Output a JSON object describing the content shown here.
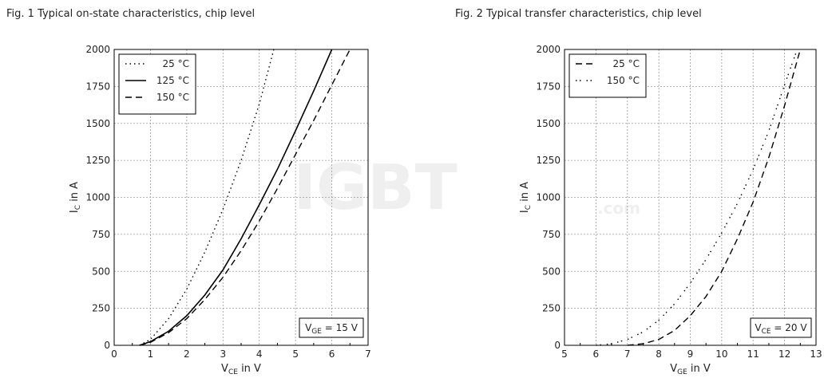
{
  "figures": {
    "fig1_title": "Fig. 1  Typical on-state characteristics, chip level",
    "fig2_title": "Fig. 2  Typical transfer characteristics, chip level"
  },
  "watermark": {
    "main": "IGBT",
    "sub": ".com"
  },
  "colors": {
    "line": "#000000",
    "grid": "#9a9a9a",
    "frame": "#000000"
  },
  "chart_data": [
    {
      "type": "line",
      "title": "Fig. 1  Typical on-state characteristics, chip level",
      "xlabel": {
        "main": "V",
        "sub": "CE",
        "rest": " in V"
      },
      "ylabel": {
        "main": "I",
        "sub": "C",
        "rest": " in A"
      },
      "xlim": [
        0,
        7
      ],
      "ylim": [
        0,
        2000
      ],
      "xticks": [
        0,
        1,
        2,
        3,
        4,
        5,
        6,
        7
      ],
      "yticks": [
        0,
        250,
        500,
        750,
        1000,
        1250,
        1500,
        1750,
        2000
      ],
      "grid": true,
      "legend_position": "top-left",
      "annotation": {
        "main": "V",
        "sub": "GE",
        "rest": " = 15 V"
      },
      "series": [
        {
          "name": "25 °C",
          "style": "dotted",
          "x": [
            0.7,
            1.0,
            1.5,
            2.0,
            2.5,
            3.0,
            3.5,
            4.0,
            4.4
          ],
          "y": [
            0,
            40,
            180,
            380,
            630,
            920,
            1250,
            1630,
            2000
          ]
        },
        {
          "name": "125 °C",
          "style": "solid",
          "x": [
            0.7,
            1.0,
            1.5,
            2.0,
            2.5,
            3.0,
            3.5,
            4.0,
            4.5,
            5.0,
            5.5,
            6.0
          ],
          "y": [
            0,
            25,
            95,
            200,
            340,
            510,
            720,
            950,
            1190,
            1450,
            1720,
            2000
          ]
        },
        {
          "name": "150 °C",
          "style": "dashed",
          "x": [
            0.7,
            1.0,
            1.5,
            2.0,
            2.5,
            3.0,
            3.5,
            4.0,
            4.5,
            5.0,
            5.5,
            6.0,
            6.5
          ],
          "y": [
            0,
            20,
            85,
            180,
            310,
            460,
            640,
            840,
            1060,
            1290,
            1520,
            1760,
            2000
          ]
        }
      ]
    },
    {
      "type": "line",
      "title": "Fig. 2  Typical transfer characteristics, chip level",
      "xlabel": {
        "main": "V",
        "sub": "GE",
        "rest": " in V"
      },
      "ylabel": {
        "main": "I",
        "sub": "C",
        "rest": " in A"
      },
      "xlim": [
        5,
        13
      ],
      "ylim": [
        0,
        2000
      ],
      "xticks": [
        5,
        6,
        7,
        8,
        9,
        10,
        11,
        12,
        13
      ],
      "yticks": [
        0,
        250,
        500,
        750,
        1000,
        1250,
        1500,
        1750,
        2000
      ],
      "grid": true,
      "legend_position": "top-left",
      "annotation": {
        "main": "V",
        "sub": "CE",
        "rest": " = 20 V"
      },
      "series": [
        {
          "name": "25 °C",
          "style": "dashed",
          "x": [
            7.0,
            7.5,
            8.0,
            8.5,
            9.0,
            9.5,
            10.0,
            10.5,
            11.0,
            11.5,
            12.0,
            12.5
          ],
          "y": [
            0,
            10,
            40,
            100,
            200,
            330,
            500,
            720,
            970,
            1270,
            1620,
            2000
          ]
        },
        {
          "name": "150 °C",
          "style": "dash-dot",
          "x": [
            6.0,
            6.5,
            7.0,
            7.5,
            8.0,
            8.5,
            9.0,
            9.5,
            10.0,
            10.5,
            11.0,
            11.5,
            12.0,
            12.4
          ],
          "y": [
            0,
            10,
            40,
            90,
            170,
            280,
            420,
            580,
            760,
            960,
            1190,
            1450,
            1760,
            2000
          ]
        }
      ]
    }
  ]
}
